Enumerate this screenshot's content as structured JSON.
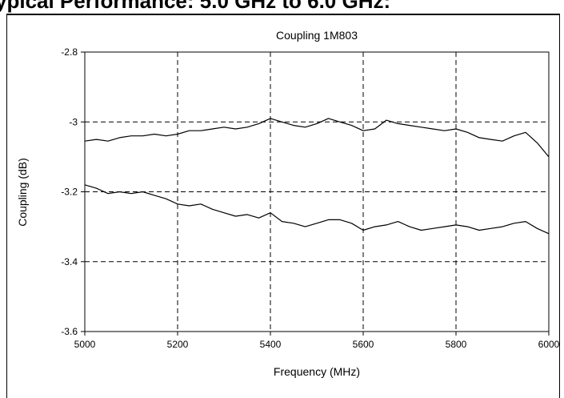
{
  "page": {
    "heading": "ypical Performance: 5.0 GHz to 6.0 GHz:"
  },
  "chart_data": {
    "type": "line",
    "title": "Coupling 1M803",
    "xlabel": "Frequency (MHz)",
    "ylabel": "Coupling (dB)",
    "xlim": [
      5000,
      6000
    ],
    "ylim": [
      -3.6,
      -2.8
    ],
    "x_ticks": [
      "5000",
      "5200",
      "5400",
      "5600",
      "5800",
      "6000"
    ],
    "y_ticks": [
      "-2.8",
      "-3",
      "-3.2",
      "-3.4",
      "-3.6"
    ],
    "grid": true,
    "grid_style": "dashed",
    "line_color": "#000000",
    "series": [
      {
        "x": [
          5000,
          5025,
          5050,
          5075,
          5100,
          5125,
          5150,
          5175,
          5200,
          5225,
          5250,
          5275,
          5300,
          5325,
          5350,
          5375,
          5400,
          5425,
          5450,
          5475,
          5500,
          5525,
          5550,
          5575,
          5600,
          5625,
          5650,
          5675,
          5700,
          5725,
          5750,
          5775,
          5800,
          5825,
          5850,
          5875,
          5900,
          5925,
          5950,
          5975,
          6000
        ],
        "values": [
          -3.055,
          -3.05,
          -3.055,
          -3.045,
          -3.04,
          -3.04,
          -3.035,
          -3.04,
          -3.035,
          -3.025,
          -3.025,
          -3.02,
          -3.015,
          -3.02,
          -3.015,
          -3.005,
          -2.99,
          -3.0,
          -3.01,
          -3.015,
          -3.005,
          -2.99,
          -3.0,
          -3.01,
          -3.025,
          -3.02,
          -2.995,
          -3.005,
          -3.01,
          -3.015,
          -3.02,
          -3.025,
          -3.02,
          -3.03,
          -3.045,
          -3.05,
          -3.055,
          -3.04,
          -3.03,
          -3.06,
          -3.1
        ]
      },
      {
        "x": [
          5000,
          5025,
          5050,
          5075,
          5100,
          5125,
          5150,
          5175,
          5200,
          5225,
          5250,
          5275,
          5300,
          5325,
          5350,
          5375,
          5400,
          5425,
          5450,
          5475,
          5500,
          5525,
          5550,
          5575,
          5600,
          5625,
          5650,
          5675,
          5700,
          5725,
          5750,
          5775,
          5800,
          5825,
          5850,
          5875,
          5900,
          5925,
          5950,
          5975,
          6000
        ],
        "values": [
          -3.18,
          -3.19,
          -3.205,
          -3.2,
          -3.205,
          -3.2,
          -3.21,
          -3.22,
          -3.235,
          -3.24,
          -3.235,
          -3.25,
          -3.26,
          -3.27,
          -3.265,
          -3.275,
          -3.26,
          -3.285,
          -3.29,
          -3.3,
          -3.29,
          -3.28,
          -3.28,
          -3.29,
          -3.31,
          -3.3,
          -3.295,
          -3.285,
          -3.3,
          -3.31,
          -3.305,
          -3.3,
          -3.295,
          -3.3,
          -3.31,
          -3.305,
          -3.3,
          -3.29,
          -3.285,
          -3.305,
          -3.32
        ]
      }
    ]
  }
}
